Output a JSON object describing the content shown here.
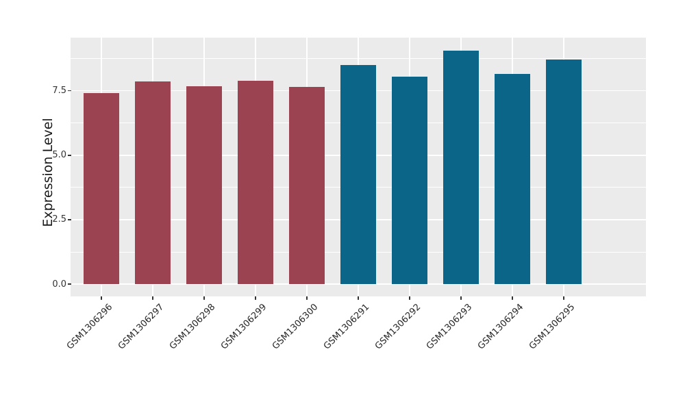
{
  "chart_data": {
    "type": "bar",
    "title": "",
    "xlabel": "",
    "ylabel": "Expression Level",
    "categories": [
      "GSM1306296",
      "GSM1306297",
      "GSM1306298",
      "GSM1306299",
      "GSM1306300",
      "GSM1306291",
      "GSM1306292",
      "GSM1306293",
      "GSM1306294",
      "GSM1306295"
    ],
    "values": [
      7.41,
      7.86,
      7.68,
      7.88,
      7.66,
      8.5,
      8.04,
      9.06,
      8.16,
      8.72
    ],
    "bar_colors": [
      "#9B4350",
      "#9B4350",
      "#9B4350",
      "#9B4350",
      "#9B4350",
      "#0B6588",
      "#0B6588",
      "#0B6588",
      "#0B6588",
      "#0B6588"
    ],
    "group_colors": {
      "left_group": "#9B4350",
      "right_group": "#0B6588"
    },
    "ylim": [
      0,
      9.56
    ],
    "y_ticks_major": [
      0.0,
      2.5,
      5.0,
      7.5
    ],
    "y_tick_labels": [
      "0.0",
      "2.5",
      "5.0",
      "7.5"
    ],
    "y_ticks_minor": [
      1.25,
      3.75,
      6.25,
      8.75
    ],
    "grid": "on",
    "legend": "none",
    "panel_background": "#EBEBEB",
    "grid_color": "#FFFFFF",
    "bar_width_fraction": 0.7
  }
}
